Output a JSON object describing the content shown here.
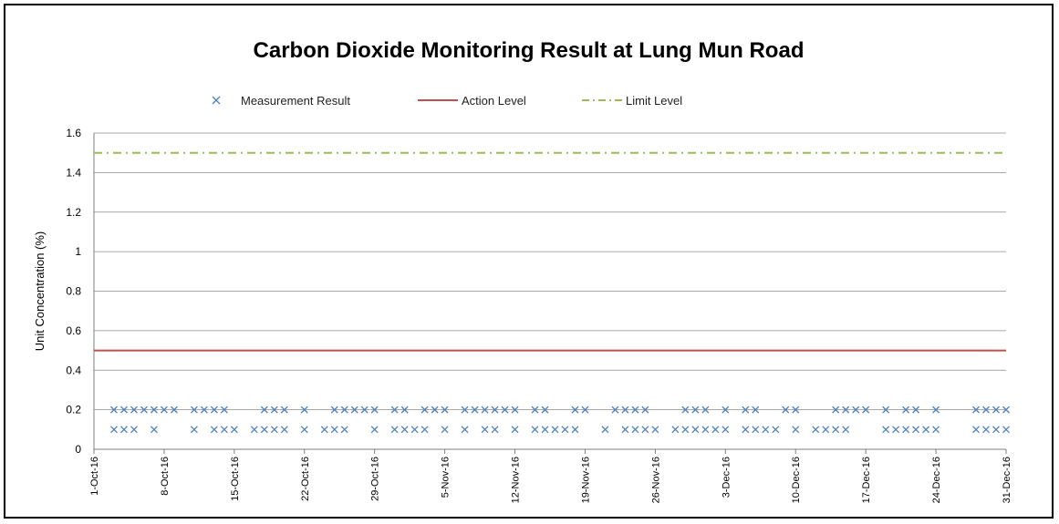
{
  "chart_data": {
    "type": "scatter",
    "title": "Carbon Dioxide Monitoring Result at Lung Mun Road",
    "xlabel": "",
    "ylabel": "Unit Concentration (%)",
    "ylim": [
      0,
      1.6
    ],
    "yticks": [
      "0",
      "0.2",
      "0.4",
      "0.6",
      "0.8",
      "1",
      "1.2",
      "1.4",
      "1.6"
    ],
    "xlim": [
      "2016-10-01",
      "2016-12-31"
    ],
    "xticks": [
      {
        "date": "2016-10-01",
        "label": "1-Oct-16"
      },
      {
        "date": "2016-10-08",
        "label": "8-Oct-16"
      },
      {
        "date": "2016-10-15",
        "label": "15-Oct-16"
      },
      {
        "date": "2016-10-22",
        "label": "22-Oct-16"
      },
      {
        "date": "2016-10-29",
        "label": "29-Oct-16"
      },
      {
        "date": "2016-11-05",
        "label": "5-Nov-16"
      },
      {
        "date": "2016-11-12",
        "label": "12-Nov-16"
      },
      {
        "date": "2016-11-19",
        "label": "19-Nov-16"
      },
      {
        "date": "2016-11-26",
        "label": "26-Nov-16"
      },
      {
        "date": "2016-12-03",
        "label": "3-Dec-16"
      },
      {
        "date": "2016-12-10",
        "label": "10-Dec-16"
      },
      {
        "date": "2016-12-17",
        "label": "17-Dec-16"
      },
      {
        "date": "2016-12-24",
        "label": "24-Dec-16"
      },
      {
        "date": "2016-12-31",
        "label": "31-Dec-16"
      }
    ],
    "grid": "horizontal",
    "legend_position": "top",
    "legend": [
      "Measurement Result",
      "Action Level",
      "Limit Level"
    ],
    "series": [
      {
        "name": "Measurement Result",
        "marker": "x",
        "color": "#4f81bd",
        "points": [
          {
            "x": "2016-10-03",
            "y": 0.2
          },
          {
            "x": "2016-10-03",
            "y": 0.1
          },
          {
            "x": "2016-10-04",
            "y": 0.2
          },
          {
            "x": "2016-10-04",
            "y": 0.1
          },
          {
            "x": "2016-10-05",
            "y": 0.2
          },
          {
            "x": "2016-10-05",
            "y": 0.1
          },
          {
            "x": "2016-10-06",
            "y": 0.2
          },
          {
            "x": "2016-10-07",
            "y": 0.2
          },
          {
            "x": "2016-10-07",
            "y": 0.1
          },
          {
            "x": "2016-10-08",
            "y": 0.2
          },
          {
            "x": "2016-10-09",
            "y": 0.2
          },
          {
            "x": "2016-10-11",
            "y": 0.2
          },
          {
            "x": "2016-10-11",
            "y": 0.1
          },
          {
            "x": "2016-10-12",
            "y": 0.2
          },
          {
            "x": "2016-10-13",
            "y": 0.2
          },
          {
            "x": "2016-10-13",
            "y": 0.1
          },
          {
            "x": "2016-10-14",
            "y": 0.2
          },
          {
            "x": "2016-10-14",
            "y": 0.1
          },
          {
            "x": "2016-10-15",
            "y": 0.1
          },
          {
            "x": "2016-10-17",
            "y": 0.1
          },
          {
            "x": "2016-10-18",
            "y": 0.2
          },
          {
            "x": "2016-10-18",
            "y": 0.1
          },
          {
            "x": "2016-10-19",
            "y": 0.2
          },
          {
            "x": "2016-10-19",
            "y": 0.1
          },
          {
            "x": "2016-10-20",
            "y": 0.2
          },
          {
            "x": "2016-10-20",
            "y": 0.1
          },
          {
            "x": "2016-10-22",
            "y": 0.2
          },
          {
            "x": "2016-10-22",
            "y": 0.1
          },
          {
            "x": "2016-10-24",
            "y": 0.1
          },
          {
            "x": "2016-10-25",
            "y": 0.2
          },
          {
            "x": "2016-10-25",
            "y": 0.1
          },
          {
            "x": "2016-10-26",
            "y": 0.2
          },
          {
            "x": "2016-10-26",
            "y": 0.1
          },
          {
            "x": "2016-10-27",
            "y": 0.2
          },
          {
            "x": "2016-10-28",
            "y": 0.2
          },
          {
            "x": "2016-10-29",
            "y": 0.2
          },
          {
            "x": "2016-10-29",
            "y": 0.1
          },
          {
            "x": "2016-10-31",
            "y": 0.2
          },
          {
            "x": "2016-10-31",
            "y": 0.1
          },
          {
            "x": "2016-11-01",
            "y": 0.2
          },
          {
            "x": "2016-11-01",
            "y": 0.1
          },
          {
            "x": "2016-11-02",
            "y": 0.1
          },
          {
            "x": "2016-11-03",
            "y": 0.2
          },
          {
            "x": "2016-11-03",
            "y": 0.1
          },
          {
            "x": "2016-11-04",
            "y": 0.2
          },
          {
            "x": "2016-11-05",
            "y": 0.2
          },
          {
            "x": "2016-11-05",
            "y": 0.1
          },
          {
            "x": "2016-11-07",
            "y": 0.2
          },
          {
            "x": "2016-11-07",
            "y": 0.1
          },
          {
            "x": "2016-11-08",
            "y": 0.2
          },
          {
            "x": "2016-11-09",
            "y": 0.2
          },
          {
            "x": "2016-11-09",
            "y": 0.1
          },
          {
            "x": "2016-11-10",
            "y": 0.2
          },
          {
            "x": "2016-11-10",
            "y": 0.1
          },
          {
            "x": "2016-11-11",
            "y": 0.2
          },
          {
            "x": "2016-11-12",
            "y": 0.2
          },
          {
            "x": "2016-11-12",
            "y": 0.1
          },
          {
            "x": "2016-11-14",
            "y": 0.2
          },
          {
            "x": "2016-11-14",
            "y": 0.1
          },
          {
            "x": "2016-11-15",
            "y": 0.2
          },
          {
            "x": "2016-11-15",
            "y": 0.1
          },
          {
            "x": "2016-11-16",
            "y": 0.1
          },
          {
            "x": "2016-11-17",
            "y": 0.1
          },
          {
            "x": "2016-11-18",
            "y": 0.2
          },
          {
            "x": "2016-11-18",
            "y": 0.1
          },
          {
            "x": "2016-11-19",
            "y": 0.2
          },
          {
            "x": "2016-11-21",
            "y": 0.1
          },
          {
            "x": "2016-11-22",
            "y": 0.2
          },
          {
            "x": "2016-11-23",
            "y": 0.2
          },
          {
            "x": "2016-11-23",
            "y": 0.1
          },
          {
            "x": "2016-11-24",
            "y": 0.2
          },
          {
            "x": "2016-11-24",
            "y": 0.1
          },
          {
            "x": "2016-11-25",
            "y": 0.2
          },
          {
            "x": "2016-11-25",
            "y": 0.1
          },
          {
            "x": "2016-11-26",
            "y": 0.1
          },
          {
            "x": "2016-11-28",
            "y": 0.1
          },
          {
            "x": "2016-11-29",
            "y": 0.2
          },
          {
            "x": "2016-11-29",
            "y": 0.1
          },
          {
            "x": "2016-11-30",
            "y": 0.2
          },
          {
            "x": "2016-11-30",
            "y": 0.1
          },
          {
            "x": "2016-12-01",
            "y": 0.2
          },
          {
            "x": "2016-12-01",
            "y": 0.1
          },
          {
            "x": "2016-12-02",
            "y": 0.1
          },
          {
            "x": "2016-12-03",
            "y": 0.2
          },
          {
            "x": "2016-12-03",
            "y": 0.1
          },
          {
            "x": "2016-12-05",
            "y": 0.2
          },
          {
            "x": "2016-12-05",
            "y": 0.1
          },
          {
            "x": "2016-12-06",
            "y": 0.2
          },
          {
            "x": "2016-12-06",
            "y": 0.1
          },
          {
            "x": "2016-12-07",
            "y": 0.1
          },
          {
            "x": "2016-12-08",
            "y": 0.1
          },
          {
            "x": "2016-12-09",
            "y": 0.2
          },
          {
            "x": "2016-12-10",
            "y": 0.2
          },
          {
            "x": "2016-12-10",
            "y": 0.1
          },
          {
            "x": "2016-12-12",
            "y": 0.1
          },
          {
            "x": "2016-12-13",
            "y": 0.1
          },
          {
            "x": "2016-12-14",
            "y": 0.2
          },
          {
            "x": "2016-12-14",
            "y": 0.1
          },
          {
            "x": "2016-12-15",
            "y": 0.2
          },
          {
            "x": "2016-12-15",
            "y": 0.1
          },
          {
            "x": "2016-12-16",
            "y": 0.2
          },
          {
            "x": "2016-12-17",
            "y": 0.2
          },
          {
            "x": "2016-12-19",
            "y": 0.2
          },
          {
            "x": "2016-12-19",
            "y": 0.1
          },
          {
            "x": "2016-12-20",
            "y": 0.1
          },
          {
            "x": "2016-12-21",
            "y": 0.2
          },
          {
            "x": "2016-12-21",
            "y": 0.1
          },
          {
            "x": "2016-12-22",
            "y": 0.2
          },
          {
            "x": "2016-12-22",
            "y": 0.1
          },
          {
            "x": "2016-12-23",
            "y": 0.1
          },
          {
            "x": "2016-12-24",
            "y": 0.2
          },
          {
            "x": "2016-12-24",
            "y": 0.1
          },
          {
            "x": "2016-12-28",
            "y": 0.2
          },
          {
            "x": "2016-12-28",
            "y": 0.1
          },
          {
            "x": "2016-12-29",
            "y": 0.2
          },
          {
            "x": "2016-12-29",
            "y": 0.1
          },
          {
            "x": "2016-12-30",
            "y": 0.2
          },
          {
            "x": "2016-12-30",
            "y": 0.1
          },
          {
            "x": "2016-12-31",
            "y": 0.2
          },
          {
            "x": "2016-12-31",
            "y": 0.1
          }
        ]
      },
      {
        "name": "Action Level",
        "type": "line",
        "style": "solid",
        "color": "#c0504d",
        "y": 0.5
      },
      {
        "name": "Limit Level",
        "type": "line",
        "style": "dash-dot",
        "color": "#9bbb59",
        "y": 1.5
      }
    ]
  }
}
